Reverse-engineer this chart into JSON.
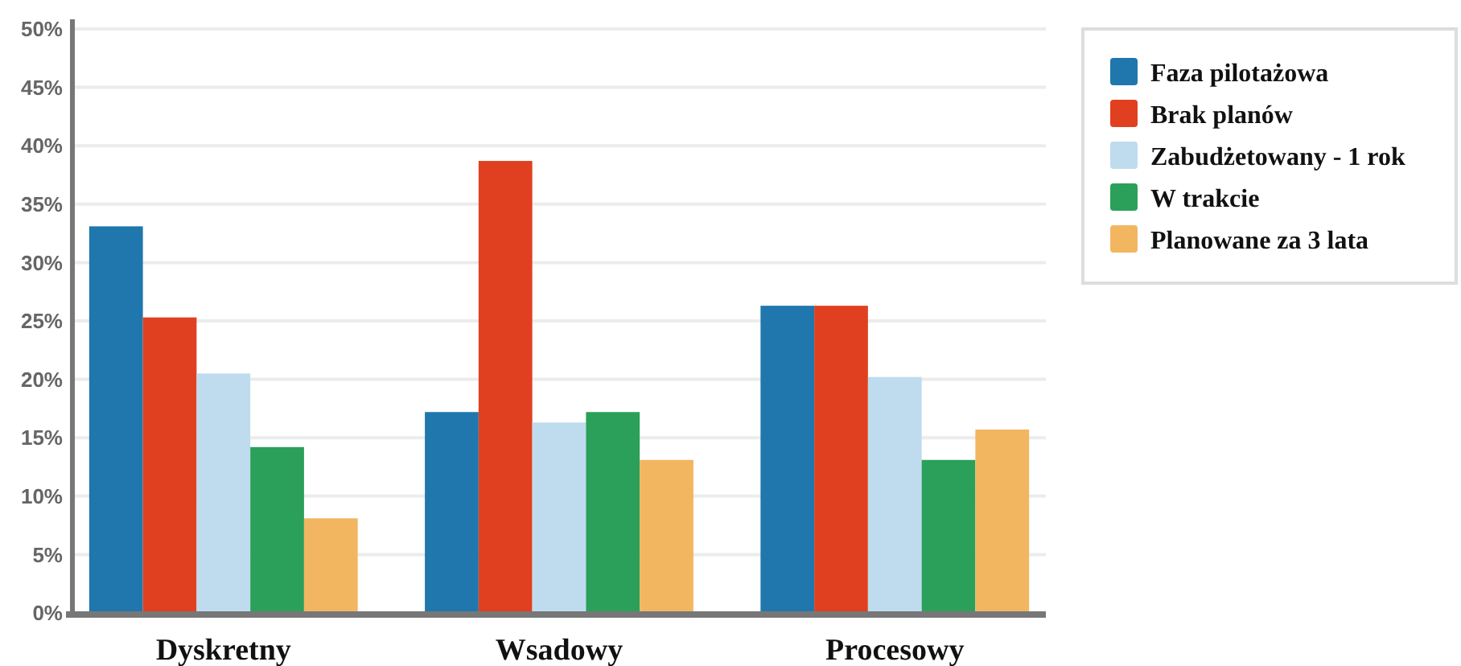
{
  "chart_data": {
    "type": "bar",
    "categories": [
      "Dyskretny",
      "Wsadowy",
      "Procesowy"
    ],
    "series": [
      {
        "name": "Faza pilotażowa",
        "color": "#1f77ad",
        "values": [
          33.1,
          17.2,
          26.3
        ]
      },
      {
        "name": "Brak planów",
        "color": "#e04020",
        "values": [
          25.3,
          38.7,
          26.3
        ]
      },
      {
        "name": "Zabudżetowany - 1 rok",
        "color": "#bedcee",
        "values": [
          20.5,
          16.3,
          20.2
        ]
      },
      {
        "name": "W trakcie",
        "color": "#2ba05a",
        "values": [
          14.2,
          17.2,
          13.1
        ]
      },
      {
        "name": "Planowane za 3 lata",
        "color": "#f2b661",
        "values": [
          8.1,
          13.1,
          15.7
        ]
      }
    ],
    "ylim": [
      0,
      50
    ],
    "yticks": [
      {
        "value": 0,
        "label": "0%"
      },
      {
        "value": 5,
        "label": "5%"
      },
      {
        "value": 10,
        "label": "10%"
      },
      {
        "value": 15,
        "label": "15%"
      },
      {
        "value": 20,
        "label": "20%"
      },
      {
        "value": 25,
        "label": "25%"
      },
      {
        "value": 30,
        "label": "30%"
      },
      {
        "value": 35,
        "label": "35%"
      },
      {
        "value": 40,
        "label": "40%"
      },
      {
        "value": 45,
        "label": "45%"
      },
      {
        "value": 50,
        "label": "50%"
      }
    ],
    "grid": "y",
    "legend": "right"
  }
}
